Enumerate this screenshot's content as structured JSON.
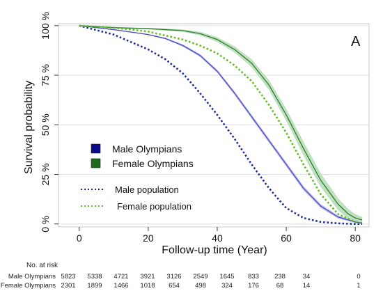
{
  "chart_data": {
    "type": "line",
    "panel_label": "A",
    "xlabel": "Follow-up time (Year)",
    "ylabel": "Survival probability",
    "xlim": [
      -6,
      84
    ],
    "ylim": [
      -0.015,
      1.01
    ],
    "x_ticks": [
      0,
      20,
      40,
      60,
      80
    ],
    "y_ticks": [
      0,
      0.25,
      0.5,
      0.75,
      1.0
    ],
    "y_tick_labels": [
      "0 %",
      "25 %",
      "50 %",
      "75 %",
      "100 %"
    ],
    "grid": true,
    "legend_position": "center-left",
    "series": [
      {
        "name": "Male Olympians",
        "style": "solid-with-ci",
        "color": "#4a4ac0",
        "band_color": "#b6b6ea",
        "legend_color": "#0a0a8a",
        "x": [
          0,
          10,
          20,
          25,
          30,
          35,
          40,
          45,
          50,
          55,
          60,
          65,
          70,
          75,
          78,
          80,
          82
        ],
        "y": [
          1.0,
          0.98,
          0.955,
          0.935,
          0.9,
          0.85,
          0.77,
          0.66,
          0.54,
          0.42,
          0.3,
          0.18,
          0.09,
          0.035,
          0.02,
          0.01,
          0.005
        ],
        "ci_halfwidth": [
          0,
          0,
          0.003,
          0.004,
          0.006,
          0.007,
          0.008,
          0.009,
          0.01,
          0.01,
          0.011,
          0.011,
          0.01,
          0.008,
          0.006,
          0.005,
          0.004
        ]
      },
      {
        "name": "Female Olympians",
        "style": "solid-with-ci",
        "color": "#2e7a2e",
        "band_color": "#b4dcb4",
        "legend_color": "#1e6b1e",
        "x": [
          0,
          10,
          20,
          25,
          30,
          35,
          40,
          45,
          50,
          55,
          60,
          65,
          70,
          75,
          78,
          80,
          82
        ],
        "y": [
          1.0,
          0.99,
          0.985,
          0.98,
          0.975,
          0.96,
          0.93,
          0.88,
          0.81,
          0.7,
          0.55,
          0.38,
          0.22,
          0.1,
          0.05,
          0.03,
          0.02
        ],
        "ci_halfwidth": [
          0,
          0.002,
          0.004,
          0.005,
          0.006,
          0.009,
          0.012,
          0.016,
          0.02,
          0.025,
          0.03,
          0.035,
          0.035,
          0.03,
          0.025,
          0.02,
          0.015
        ]
      },
      {
        "name": "Male population",
        "style": "dotted",
        "color": "#1a2a9a",
        "x": [
          0,
          10,
          20,
          25,
          30,
          35,
          40,
          45,
          50,
          55,
          60,
          65,
          70,
          75,
          80,
          82
        ],
        "y": [
          1.0,
          0.955,
          0.88,
          0.83,
          0.76,
          0.66,
          0.55,
          0.43,
          0.3,
          0.18,
          0.08,
          0.03,
          0.01,
          0.003,
          0.0,
          0.0
        ]
      },
      {
        "name": "Female population",
        "style": "dotted",
        "color": "#5cbc1c",
        "x": [
          0,
          10,
          20,
          25,
          30,
          35,
          40,
          45,
          50,
          55,
          60,
          65,
          70,
          75,
          80,
          82
        ],
        "y": [
          1.0,
          0.99,
          0.97,
          0.95,
          0.93,
          0.9,
          0.86,
          0.8,
          0.72,
          0.6,
          0.46,
          0.3,
          0.15,
          0.05,
          0.01,
          0.0
        ]
      }
    ],
    "risk_table": {
      "title": "No. at risk",
      "times": [
        0,
        8,
        16,
        24,
        32,
        40,
        48,
        56,
        64,
        72,
        80
      ],
      "rows": [
        {
          "label": "Male Olympians",
          "values": [
            "5823",
            "5338",
            "4721",
            "3921",
            "3126",
            "2549",
            "1645",
            "833",
            "238",
            "34",
            "0"
          ]
        },
        {
          "label": "Female Olympians",
          "values": [
            "2301",
            "1899",
            "1466",
            "1018",
            "654",
            "498",
            "324",
            "176",
            "68",
            "14",
            "1"
          ]
        }
      ]
    }
  }
}
